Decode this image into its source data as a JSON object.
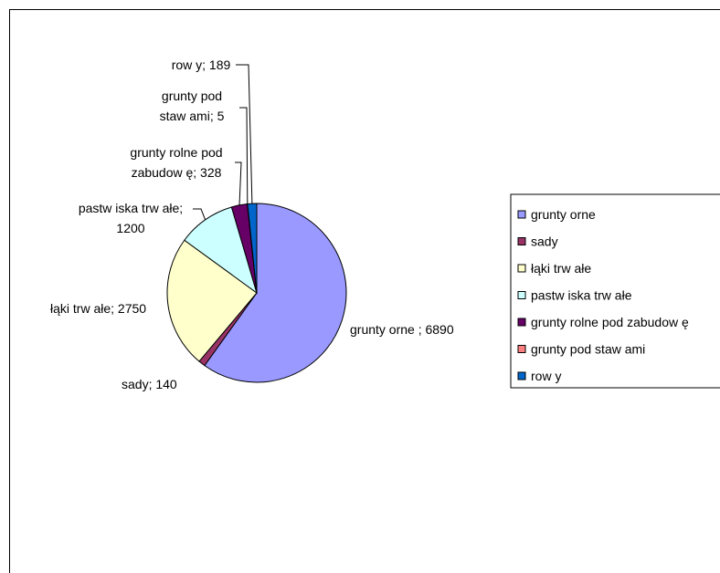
{
  "chart_data": {
    "type": "pie",
    "title": "",
    "categories": [
      "grunty orne",
      "sady",
      "łąki trw ałe",
      "pastw iska trw ałe",
      "grunty rolne pod zabudow ę",
      "grunty pod staw ami",
      "row y"
    ],
    "values": [
      6890,
      140,
      2750,
      1200,
      328,
      5,
      189
    ],
    "colors": [
      "#9999FF",
      "#993366",
      "#FFFFCC",
      "#CCFFFF",
      "#660066",
      "#FF8080",
      "#0066CC"
    ],
    "data_labels": [
      [
        "grunty orne ; 6890"
      ],
      [
        "sady; 140"
      ],
      [
        "łąki trw ałe; 2750"
      ],
      [
        "pastw iska trw ałe;",
        "1200"
      ],
      [
        "grunty rolne pod",
        "zabudow ę; 328"
      ],
      [
        "grunty pod",
        "staw ami; 5"
      ],
      [
        "row y; 189"
      ]
    ],
    "legend": {
      "position": "right",
      "entries": [
        "grunty orne",
        "sady",
        "łąki trw ałe",
        "pastw iska trw ałe",
        "grunty rolne pod zabudow ę",
        "grunty pod staw ami",
        "row y"
      ]
    }
  }
}
